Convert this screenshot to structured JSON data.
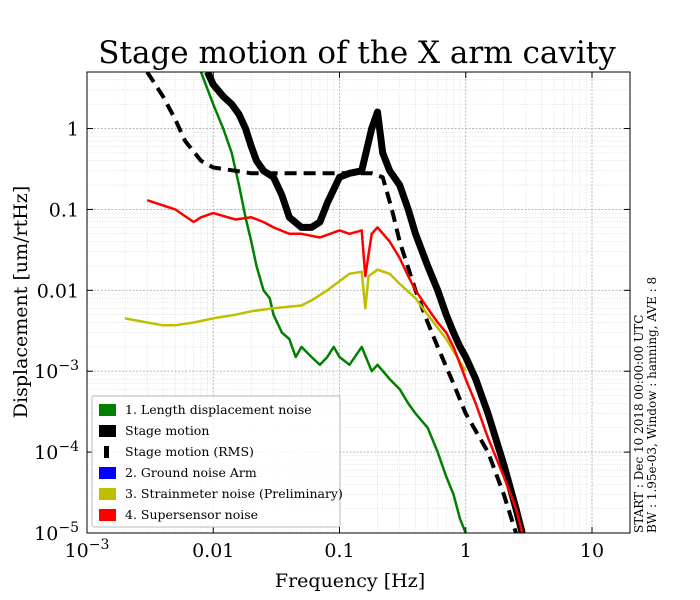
{
  "chart_data": {
    "type": "line",
    "title": "Stage motion of the X arm cavity",
    "xlabel": "Frequency [Hz]",
    "ylabel": "Displacement [um/rtHz]",
    "xscale": "log",
    "yscale": "log",
    "xlim": [
      0.001,
      20
    ],
    "ylim": [
      1e-05,
      5
    ],
    "x_ticks": [
      {
        "value": 0.001,
        "base": "10",
        "exp": "−3"
      },
      {
        "value": 0.01,
        "label": "0.01"
      },
      {
        "value": 0.1,
        "label": "0.1"
      },
      {
        "value": 1,
        "label": "1"
      },
      {
        "value": 10,
        "label": "10"
      }
    ],
    "y_ticks": [
      {
        "value": 1e-05,
        "base": "10",
        "exp": "−5"
      },
      {
        "value": 0.0001,
        "base": "10",
        "exp": "−4"
      },
      {
        "value": 0.001,
        "base": "10",
        "exp": "−3"
      },
      {
        "value": 0.01,
        "label": "0.01"
      },
      {
        "value": 0.1,
        "label": "0.1"
      },
      {
        "value": 1,
        "label": "1"
      }
    ],
    "grid": true,
    "legend_position": "lower-left",
    "side_note": [
      "START : Dec 10 2018 00:00:00 UTC",
      "BW : 1.95e-03, Window : hanning, AVE : 8"
    ],
    "series": [
      {
        "name": "1. Length displacement noise",
        "color": "#008000",
        "style": "solid",
        "width": 2.5,
        "x": [
          0.008,
          0.01,
          0.012,
          0.014,
          0.016,
          0.018,
          0.02,
          0.022,
          0.025,
          0.028,
          0.03,
          0.035,
          0.04,
          0.045,
          0.05,
          0.06,
          0.07,
          0.08,
          0.09,
          0.1,
          0.12,
          0.15,
          0.18,
          0.2,
          0.25,
          0.3,
          0.35,
          0.4,
          0.5,
          0.6,
          0.7,
          0.8,
          0.9,
          1.0
        ],
        "y": [
          5.0,
          2.0,
          1.0,
          0.5,
          0.2,
          0.08,
          0.04,
          0.02,
          0.01,
          0.008,
          0.005,
          0.003,
          0.0025,
          0.0015,
          0.002,
          0.0015,
          0.0012,
          0.0015,
          0.002,
          0.0015,
          0.0012,
          0.002,
          0.001,
          0.0012,
          0.0008,
          0.0006,
          0.0004,
          0.0003,
          0.0002,
          0.0001,
          5e-05,
          3e-05,
          1.5e-05,
          1e-05
        ]
      },
      {
        "name": "Stage motion",
        "color": "#000000",
        "style": "solid",
        "width": 7,
        "x": [
          0.009,
          0.01,
          0.012,
          0.014,
          0.016,
          0.018,
          0.02,
          0.022,
          0.025,
          0.03,
          0.035,
          0.04,
          0.05,
          0.06,
          0.07,
          0.08,
          0.1,
          0.12,
          0.15,
          0.18,
          0.2,
          0.22,
          0.25,
          0.3,
          0.35,
          0.4,
          0.5,
          0.6,
          0.7,
          0.8,
          0.9,
          1.0,
          1.2,
          1.5,
          2.0,
          2.5,
          2.8
        ],
        "y": [
          5.0,
          3.5,
          2.5,
          2.0,
          1.5,
          1.0,
          0.6,
          0.4,
          0.3,
          0.25,
          0.15,
          0.08,
          0.06,
          0.06,
          0.07,
          0.12,
          0.25,
          0.28,
          0.3,
          1.0,
          1.6,
          0.5,
          0.3,
          0.2,
          0.1,
          0.05,
          0.02,
          0.01,
          0.005,
          0.003,
          0.002,
          0.0015,
          0.0008,
          0.0003,
          7e-05,
          2e-05,
          1e-05
        ]
      },
      {
        "name": "Stage motion (RMS)",
        "color": "#000000",
        "style": "dashed",
        "width": 4,
        "x": [
          0.003,
          0.004,
          0.005,
          0.006,
          0.008,
          0.01,
          0.015,
          0.02,
          0.05,
          0.1,
          0.18,
          0.22,
          0.26,
          0.3,
          0.4,
          0.5,
          0.6,
          0.8,
          1.0,
          1.5,
          2.0,
          2.5
        ],
        "y": [
          5.0,
          2.5,
          1.3,
          0.7,
          0.4,
          0.33,
          0.3,
          0.28,
          0.28,
          0.28,
          0.28,
          0.25,
          0.1,
          0.04,
          0.01,
          0.004,
          0.002,
          0.0007,
          0.0003,
          0.0001,
          3e-05,
          1e-05
        ]
      },
      {
        "name": "2. Ground noise Arm",
        "color": "#0000ff",
        "style": "solid",
        "width": 2,
        "x": [],
        "y": []
      },
      {
        "name": "3. Strainmeter noise (Preliminary)",
        "color": "#bfbf00",
        "style": "solid",
        "width": 2.5,
        "x": [
          0.002,
          0.003,
          0.004,
          0.005,
          0.007,
          0.01,
          0.015,
          0.02,
          0.03,
          0.05,
          0.06,
          0.08,
          0.1,
          0.12,
          0.15,
          0.16,
          0.17,
          0.2,
          0.25,
          0.3,
          0.4,
          0.5,
          0.7,
          1.0
        ],
        "y": [
          0.0045,
          0.004,
          0.0037,
          0.0037,
          0.004,
          0.0045,
          0.005,
          0.0055,
          0.006,
          0.0065,
          0.0075,
          0.01,
          0.013,
          0.016,
          0.017,
          0.006,
          0.015,
          0.018,
          0.016,
          0.012,
          0.008,
          0.005,
          0.0025,
          0.001
        ]
      },
      {
        "name": "4. Supersensor noise",
        "color": "#ff0000",
        "style": "solid",
        "width": 2.5,
        "x": [
          0.003,
          0.005,
          0.007,
          0.008,
          0.01,
          0.015,
          0.02,
          0.025,
          0.03,
          0.04,
          0.05,
          0.07,
          0.1,
          0.12,
          0.15,
          0.16,
          0.18,
          0.2,
          0.25,
          0.3,
          0.35,
          0.4,
          0.5,
          0.6,
          0.7,
          0.8,
          1.0,
          1.2,
          1.5,
          2.0,
          2.5,
          2.8
        ],
        "y": [
          0.13,
          0.1,
          0.07,
          0.08,
          0.09,
          0.075,
          0.08,
          0.07,
          0.06,
          0.05,
          0.05,
          0.045,
          0.055,
          0.05,
          0.055,
          0.015,
          0.05,
          0.06,
          0.04,
          0.025,
          0.015,
          0.01,
          0.006,
          0.004,
          0.003,
          0.002,
          0.0008,
          0.0004,
          0.00015,
          5e-05,
          2e-05,
          1e-05
        ]
      }
    ]
  }
}
